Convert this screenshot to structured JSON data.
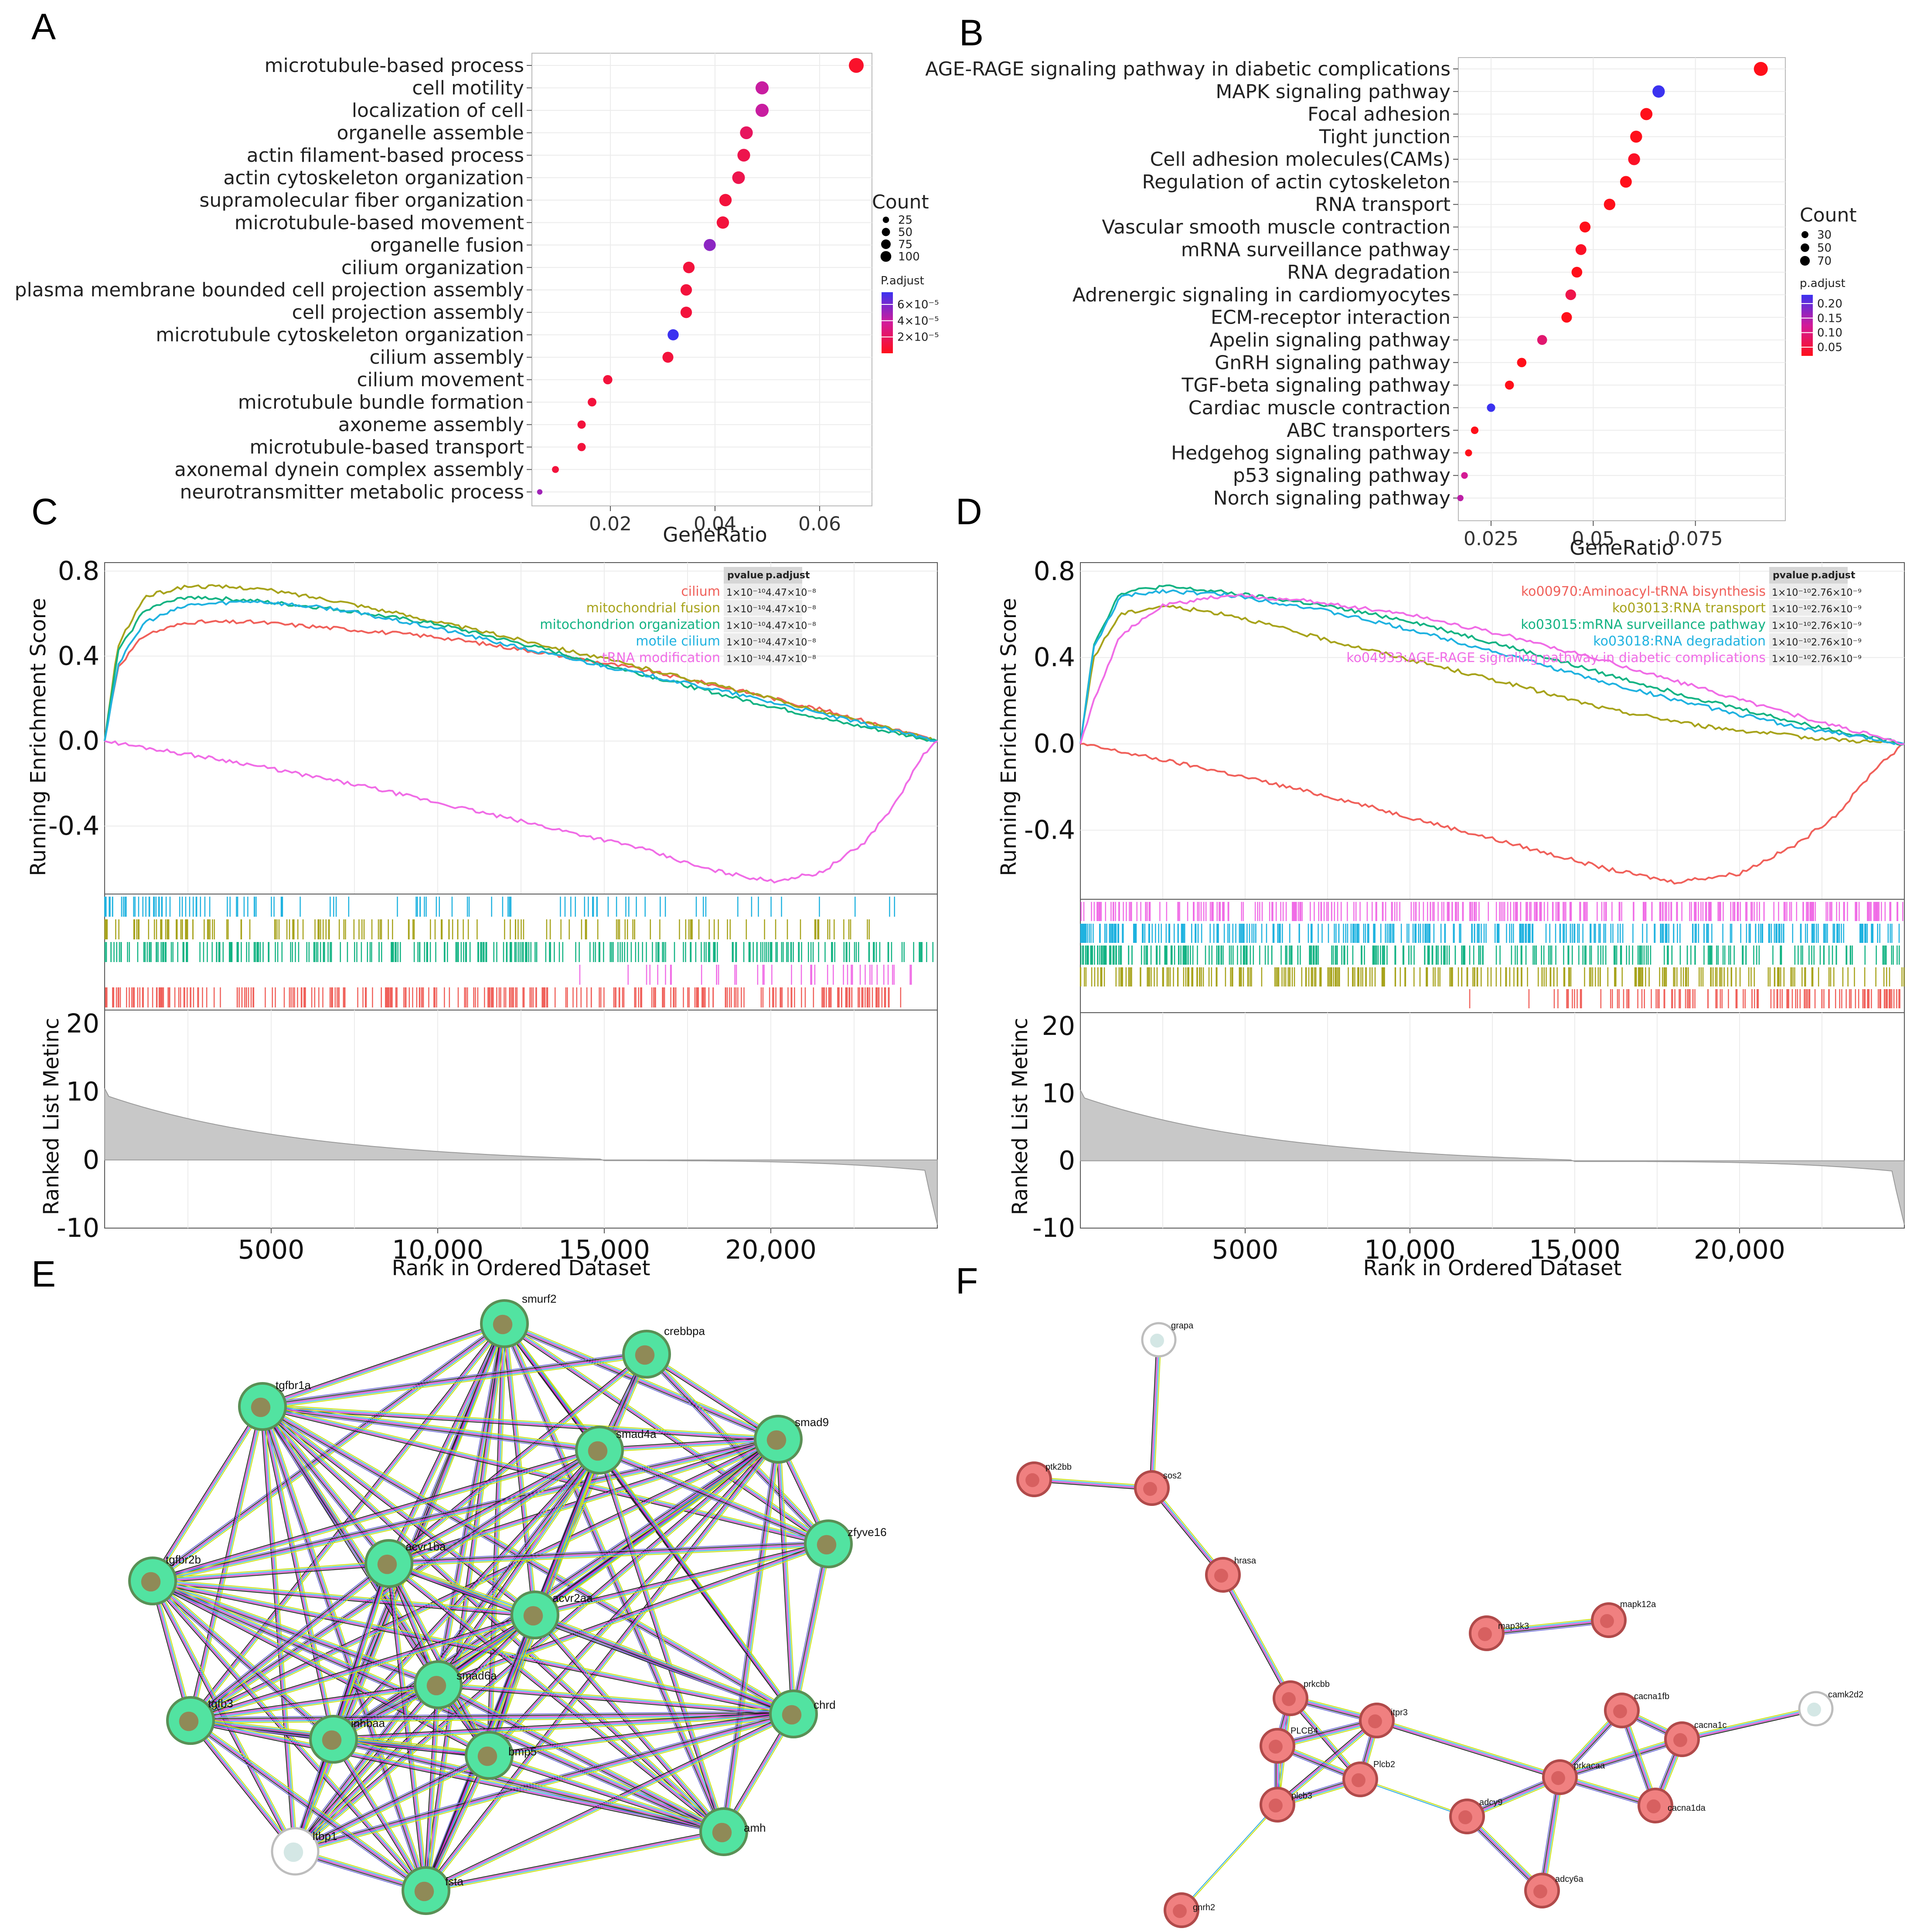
{
  "chart_data": [
    {
      "panel": "A",
      "type": "scatter",
      "xlabel": "GeneRatio",
      "xlim": [
        0.005,
        0.07
      ],
      "xticks": [
        0.02,
        0.04,
        0.06
      ],
      "xticklabels": [
        "0.02",
        "0.04",
        "0.06"
      ],
      "categories": [
        "microtubule-based process",
        "cell motility",
        "localization of cell",
        "organelle assemble",
        "actin filament-based process",
        "actin cytoskeleton organization",
        "supramolecular fiber organization",
        "microtubule-based movement",
        "organelle fusion",
        "cilium organization",
        "plasma membrane bounded cell projection assembly",
        "cell projection assembly",
        "microtubule cytoskeleton organization",
        "cilium assembly",
        "cilium movement",
        "microtubule bundle formation",
        "axoneme assembly",
        "microtubule-based transport",
        "axonemal dynein complex assembly",
        "neurotransmitter metabolic process"
      ],
      "gene_ratio": [
        0.067,
        0.049,
        0.049,
        0.046,
        0.0455,
        0.0445,
        0.042,
        0.0415,
        0.039,
        0.035,
        0.0345,
        0.0345,
        0.032,
        0.031,
        0.0195,
        0.0165,
        0.0145,
        0.0145,
        0.0095,
        0.0065
      ],
      "count": [
        110,
        80,
        80,
        75,
        74,
        73,
        69,
        68,
        64,
        57,
        56,
        56,
        52,
        50,
        32,
        27,
        24,
        24,
        16,
        11
      ],
      "p_adjust": [
        5e-06,
        4e-05,
        4e-05,
        2e-05,
        1.5e-05,
        1.5e-05,
        1e-05,
        1e-05,
        5.5e-05,
        1e-05,
        1e-05,
        1e-05,
        7.5e-05,
        1e-05,
        1e-05,
        1e-05,
        1e-05,
        1e-05,
        1e-05,
        5e-05
      ],
      "legend": {
        "size_title": "Count",
        "size_values": [
          25,
          50,
          75,
          100
        ],
        "size_labels": [
          "25",
          "50",
          "75",
          "100"
        ],
        "color_title": "P.adjust",
        "color_labels": [
          "6×10⁻⁵",
          "4×10⁻⁵",
          "2×10⁻⁵"
        ],
        "color_values": [
          6e-05,
          4e-05,
          2e-05
        ],
        "color_range": [
          0,
          7.5e-05
        ]
      }
    },
    {
      "panel": "B",
      "type": "scatter",
      "xlabel": "GeneRatio",
      "xlim": [
        0.017,
        0.097
      ],
      "xticks": [
        0.025,
        0.05,
        0.075
      ],
      "xticklabels": [
        "0.025",
        "0.05",
        "0.075"
      ],
      "categories": [
        "AGE-RAGE signaling pathway in diabetic complications",
        "MAPK signaling pathway",
        "Focal adhesion",
        "Tight junction",
        "Cell adhesion molecules(CAMs)",
        "Regulation of actin cytoskeleton",
        "RNA transport",
        "Vascular smooth muscle contraction",
        "mRNA surveillance pathway",
        "RNA degradation",
        "Adrenergic signaling in cardiomyocytes",
        "ECM-receptor interaction",
        "Apelin signaling pathway",
        "GnRH signaling pathway",
        "TGF-beta signaling pathway",
        "Cardiac muscle contraction",
        "ABC transporters",
        "Hedgehog signaling pathway",
        "p53 signaling pathway",
        "Norch signaling pathway"
      ],
      "gene_ratio": [
        0.091,
        0.066,
        0.063,
        0.0605,
        0.06,
        0.058,
        0.054,
        0.048,
        0.047,
        0.046,
        0.0445,
        0.0435,
        0.0375,
        0.0325,
        0.0295,
        0.025,
        0.021,
        0.0195,
        0.0185,
        0.0175
      ],
      "count": [
        85,
        62,
        59,
        57,
        56,
        54,
        51,
        45,
        44,
        43,
        42,
        41,
        35,
        31,
        28,
        24,
        20,
        18,
        17,
        16
      ],
      "p_adjust": [
        0.02,
        0.23,
        0.02,
        0.02,
        0.03,
        0.02,
        0.02,
        0.02,
        0.03,
        0.02,
        0.06,
        0.02,
        0.09,
        0.02,
        0.02,
        0.23,
        0.02,
        0.02,
        0.12,
        0.14
      ],
      "legend": {
        "size_title": "Count",
        "size_values": [
          30,
          50,
          70
        ],
        "size_labels": [
          "30",
          "50",
          "70"
        ],
        "color_title": "p.adjust",
        "color_labels": [
          "0.20",
          "0.15",
          "0.10",
          "0.05"
        ],
        "color_values": [
          0.2,
          0.15,
          0.1,
          0.05
        ],
        "color_range": [
          0.02,
          0.23
        ]
      }
    },
    {
      "panel": "C",
      "type": "line",
      "ylabel_top": "Running Enrichment Score",
      "ylabel_bottom": "Ranked List Metinc",
      "xlabel": "Rank in Ordered Dataset",
      "xlim": [
        0,
        25000
      ],
      "xticks": [
        5000,
        10000,
        15000,
        20000
      ],
      "xticklabels": [
        "5000",
        "10,000",
        "15,000",
        "20,000"
      ],
      "ylim": [
        -0.72,
        0.84
      ],
      "yticks": [
        0.8,
        0.4,
        0.0,
        -0.4
      ],
      "yticklabels": [
        "0.8",
        "0.4",
        "0.0",
        "-0.4"
      ],
      "metric_ylim": [
        -10,
        22
      ],
      "metric_yticks": [
        20,
        10,
        0,
        -10
      ],
      "metric_yticklabels": [
        "20",
        "10",
        "0",
        "-10"
      ],
      "table_headers": [
        "pvalue",
        "p.adjust"
      ],
      "series": [
        {
          "name": "cilium",
          "color": "#f0605a",
          "pvalue": "1×10⁻¹⁰",
          "padjust": "4.47×10⁻⁸",
          "curve": [
            [
              0,
              0
            ],
            [
              400,
              0.35
            ],
            [
              1200,
              0.5
            ],
            [
              2500,
              0.56
            ],
            [
              4500,
              0.56
            ],
            [
              7000,
              0.53
            ],
            [
              10000,
              0.49
            ],
            [
              13000,
              0.42
            ],
            [
              16000,
              0.34
            ],
            [
              19000,
              0.24
            ],
            [
              22000,
              0.13
            ],
            [
              25000,
              0
            ]
          ]
        },
        {
          "name": "mitochondrial fusion",
          "color": "#a7a31b",
          "pvalue": "1×10⁻¹⁰",
          "padjust": "4.47×10⁻⁸",
          "curve": [
            [
              0,
              0
            ],
            [
              400,
              0.45
            ],
            [
              1200,
              0.68
            ],
            [
              2500,
              0.73
            ],
            [
              4500,
              0.72
            ],
            [
              7000,
              0.66
            ],
            [
              10000,
              0.56
            ],
            [
              13000,
              0.46
            ],
            [
              16000,
              0.35
            ],
            [
              19000,
              0.24
            ],
            [
              22000,
              0.12
            ],
            [
              25000,
              0
            ]
          ]
        },
        {
          "name": "mitochondrion organization",
          "color": "#13b383",
          "pvalue": "1×10⁻¹⁰",
          "padjust": "4.47×10⁻⁸",
          "curve": [
            [
              0,
              0
            ],
            [
              400,
              0.42
            ],
            [
              1200,
              0.62
            ],
            [
              2500,
              0.68
            ],
            [
              4500,
              0.66
            ],
            [
              7000,
              0.62
            ],
            [
              10000,
              0.55
            ],
            [
              13000,
              0.44
            ],
            [
              16000,
              0.32
            ],
            [
              19000,
              0.2
            ],
            [
              22000,
              0.09
            ],
            [
              25000,
              0
            ]
          ]
        },
        {
          "name": "motile cilium",
          "color": "#1fb2e0",
          "pvalue": "1×10⁻¹⁰",
          "padjust": "4.47×10⁻⁸",
          "curve": [
            [
              0,
              0
            ],
            [
              400,
              0.36
            ],
            [
              1200,
              0.56
            ],
            [
              2500,
              0.64
            ],
            [
              4500,
              0.66
            ],
            [
              7000,
              0.62
            ],
            [
              10000,
              0.53
            ],
            [
              13000,
              0.42
            ],
            [
              16000,
              0.32
            ],
            [
              19000,
              0.22
            ],
            [
              22000,
              0.11
            ],
            [
              25000,
              0
            ]
          ]
        },
        {
          "name": "tRNA modification",
          "color": "#f06ce6",
          "pvalue": "1×10⁻¹⁰",
          "padjust": "4.47×10⁻⁸",
          "curve": [
            [
              0,
              0
            ],
            [
              4000,
              -0.1
            ],
            [
              8000,
              -0.22
            ],
            [
              12000,
              -0.36
            ],
            [
              16000,
              -0.5
            ],
            [
              18000,
              -0.6
            ],
            [
              20000,
              -0.66
            ],
            [
              21500,
              -0.62
            ],
            [
              22800,
              -0.48
            ],
            [
              23800,
              -0.28
            ],
            [
              24500,
              -0.08
            ],
            [
              25000,
              0
            ]
          ]
        }
      ]
    },
    {
      "panel": "D",
      "type": "line",
      "ylabel_top": "Running Enrichment Score",
      "ylabel_bottom": "Ranked List Metinc",
      "xlabel": "Rank in Ordered Dataset",
      "xlim": [
        0,
        25000
      ],
      "xticks": [
        5000,
        10000,
        15000,
        20000
      ],
      "xticklabels": [
        "5000",
        "10,000",
        "15,000",
        "20,000"
      ],
      "ylim": [
        -0.72,
        0.84
      ],
      "yticks": [
        0.8,
        0.4,
        0.0,
        -0.4
      ],
      "yticklabels": [
        "0.8",
        "0.4",
        "0.0",
        "-0.4"
      ],
      "metric_ylim": [
        -10,
        22
      ],
      "metric_yticks": [
        20,
        10,
        0,
        -10
      ],
      "metric_yticklabels": [
        "20",
        "10",
        "0",
        "-10"
      ],
      "table_headers": [
        "pvalue",
        "p.adjust"
      ],
      "series": [
        {
          "name": "ko00970:Aminoacyl-tRNA bisynthesis",
          "color": "#f0605a",
          "pvalue": "1×10⁻¹⁰",
          "padjust": "2.76×10⁻⁹",
          "curve": [
            [
              0,
              0
            ],
            [
              4000,
              -0.12
            ],
            [
              8000,
              -0.26
            ],
            [
              12000,
              -0.42
            ],
            [
              16000,
              -0.58
            ],
            [
              18000,
              -0.64
            ],
            [
              20000,
              -0.6
            ],
            [
              21800,
              -0.46
            ],
            [
              23000,
              -0.32
            ],
            [
              24200,
              -0.1
            ],
            [
              25000,
              0
            ]
          ]
        },
        {
          "name": "ko03013:RNA transport",
          "color": "#a7a31b",
          "pvalue": "1×10⁻¹⁰",
          "padjust": "2.76×10⁻⁹",
          "curve": [
            [
              0,
              0
            ],
            [
              400,
              0.4
            ],
            [
              1200,
              0.6
            ],
            [
              2500,
              0.64
            ],
            [
              4500,
              0.6
            ],
            [
              7000,
              0.5
            ],
            [
              10000,
              0.39
            ],
            [
              13000,
              0.28
            ],
            [
              16000,
              0.16
            ],
            [
              19000,
              0.08
            ],
            [
              22000,
              0.03
            ],
            [
              25000,
              0
            ]
          ]
        },
        {
          "name": "ko03015:mRNA surveillance pathway",
          "color": "#13b383",
          "pvalue": "1×10⁻¹⁰",
          "padjust": "2.76×10⁻⁹",
          "curve": [
            [
              0,
              0
            ],
            [
              400,
              0.46
            ],
            [
              1200,
              0.7
            ],
            [
              2500,
              0.73
            ],
            [
              4500,
              0.7
            ],
            [
              7000,
              0.65
            ],
            [
              10000,
              0.57
            ],
            [
              13000,
              0.45
            ],
            [
              16000,
              0.32
            ],
            [
              19000,
              0.2
            ],
            [
              22000,
              0.09
            ],
            [
              25000,
              0
            ]
          ]
        },
        {
          "name": "ko03018:RNA degradation",
          "color": "#1fb2e0",
          "pvalue": "1×10⁻¹⁰",
          "padjust": "2.76×10⁻⁹",
          "curve": [
            [
              0,
              0
            ],
            [
              400,
              0.44
            ],
            [
              1200,
              0.68
            ],
            [
              2500,
              0.71
            ],
            [
              4500,
              0.69
            ],
            [
              7000,
              0.63
            ],
            [
              10000,
              0.53
            ],
            [
              13000,
              0.41
            ],
            [
              16000,
              0.28
            ],
            [
              19000,
              0.17
            ],
            [
              22000,
              0.07
            ],
            [
              25000,
              0
            ]
          ]
        },
        {
          "name": "ko04933:AGE-RAGE signaling pathway in diabetic complications",
          "color": "#f06ce6",
          "pvalue": "1×10⁻¹⁰",
          "padjust": "2.76×10⁻⁹",
          "curve": [
            [
              0,
              0
            ],
            [
              400,
              0.2
            ],
            [
              1200,
              0.5
            ],
            [
              2500,
              0.64
            ],
            [
              4500,
              0.69
            ],
            [
              7000,
              0.66
            ],
            [
              10000,
              0.6
            ],
            [
              13000,
              0.5
            ],
            [
              16000,
              0.38
            ],
            [
              19000,
              0.25
            ],
            [
              22000,
              0.12
            ],
            [
              25000,
              0
            ]
          ]
        }
      ]
    }
  ],
  "panels": {
    "A": "A",
    "B": "B",
    "C": "C",
    "D": "D",
    "E": "E",
    "F": "F"
  },
  "network_e": {
    "node_color": "#52e3a1",
    "labels": [
      "smurf2",
      "crebbpa",
      "tgfbr1a",
      "smad9",
      "smad4a",
      "zfyve16",
      "tgfbr2b",
      "acvr1ba",
      "acvr2aa",
      "smad6a",
      "chrd",
      "tgfb3",
      "inhbaa",
      "bmp5",
      "ltbp1",
      "amh",
      "fsta"
    ]
  },
  "network_f": {
    "node_color": "#f08080",
    "labels": [
      "grapa",
      "ptk2bb",
      "sos2",
      "hrasa",
      "map3k3",
      "mapk12a",
      "prkcbb",
      "camk2d2",
      "cacna1fb",
      "itpr3",
      "cacna1c",
      "PLCB4",
      "prkacaa",
      "Plcb2",
      "plcb3",
      "adcy9",
      "cacna1da",
      "adcy6a",
      "gnrh2"
    ]
  }
}
